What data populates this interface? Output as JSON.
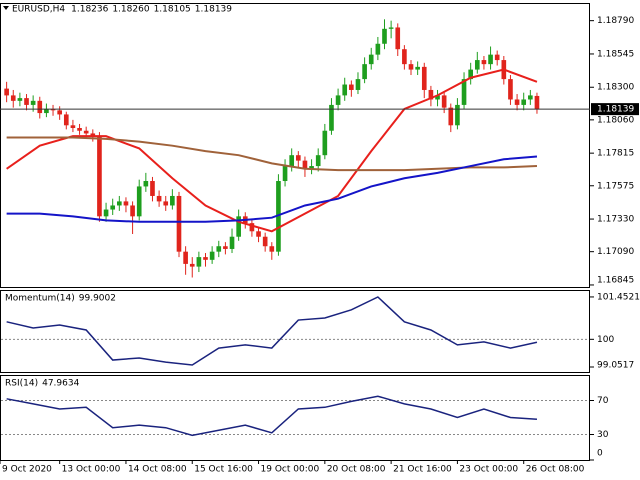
{
  "chart_data": [
    {
      "type": "candlestick",
      "title": "EURUSD,H4",
      "last_bar_labels": {
        "open": "1.18236",
        "high": "1.18260",
        "low": "1.18105",
        "close": "1.18139"
      },
      "x": [
        0,
        1,
        2,
        3,
        4,
        5,
        6,
        7,
        8,
        9,
        10,
        11,
        12,
        13,
        14,
        15,
        16,
        17,
        18,
        19,
        20,
        21,
        22,
        23,
        24,
        25,
        26,
        27,
        28,
        29,
        30,
        31,
        32,
        33,
        34,
        35,
        36,
        37,
        38,
        39,
        40,
        41,
        42,
        43,
        44,
        45,
        46,
        47,
        48,
        49,
        50,
        51,
        52,
        53,
        54,
        55,
        56,
        57,
        58,
        59,
        60,
        61,
        62,
        63,
        64,
        65,
        66,
        67,
        68,
        69,
        70,
        71,
        72,
        73,
        74,
        75,
        76,
        77,
        78,
        79,
        80
      ],
      "open": [
        1.1829,
        1.1824,
        1.182,
        1.1822,
        1.1817,
        1.182,
        1.1811,
        1.1814,
        1.1813,
        1.181,
        1.1802,
        1.18,
        1.1798,
        1.1796,
        1.1794,
        1.1735,
        1.174,
        1.1743,
        1.1746,
        1.1743,
        1.1735,
        1.1757,
        1.1761,
        1.175,
        1.1746,
        1.1743,
        1.175,
        1.1709,
        1.17,
        1.1698,
        1.1705,
        1.1703,
        1.1709,
        1.1713,
        1.1711,
        1.172,
        1.1735,
        1.173,
        1.1724,
        1.172,
        1.1713,
        1.1709,
        1.1761,
        1.1772,
        1.178,
        1.1776,
        1.177,
        1.1772,
        1.178,
        1.1798,
        1.1817,
        1.1824,
        1.1832,
        1.1828,
        1.1836,
        1.1847,
        1.1854,
        1.1862,
        1.1873,
        1.1874,
        1.1858,
        1.1847,
        1.1843,
        1.1845,
        1.1828,
        1.1821,
        1.1824,
        1.1815,
        1.1802,
        1.1817,
        1.1836,
        1.1843,
        1.185,
        1.1847,
        1.1854,
        1.185,
        1.1836,
        1.1821,
        1.1817,
        1.1821,
        1.18236
      ],
      "high": [
        1.1834,
        1.1828,
        1.1826,
        1.1825,
        1.1824,
        1.1823,
        1.1818,
        1.1817,
        1.1816,
        1.1812,
        1.1806,
        1.1803,
        1.1801,
        1.1799,
        1.1797,
        1.1745,
        1.1748,
        1.175,
        1.1749,
        1.1746,
        1.1762,
        1.1767,
        1.1764,
        1.1754,
        1.175,
        1.1755,
        1.1753,
        1.1713,
        1.1705,
        1.1709,
        1.1708,
        1.1713,
        1.1717,
        1.1716,
        1.1726,
        1.174,
        1.1738,
        1.1733,
        1.1727,
        1.1723,
        1.1716,
        1.1766,
        1.1777,
        1.1785,
        1.1783,
        1.1779,
        1.1777,
        1.1785,
        1.1803,
        1.1822,
        1.1829,
        1.1837,
        1.1835,
        1.1841,
        1.1852,
        1.1859,
        1.1867,
        1.188,
        1.1879,
        1.1877,
        1.1861,
        1.185,
        1.1849,
        1.1848,
        1.1831,
        1.1828,
        1.1827,
        1.1818,
        1.1822,
        1.1841,
        1.1848,
        1.1856,
        1.1853,
        1.186,
        1.1857,
        1.1853,
        1.1839,
        1.1825,
        1.1826,
        1.1828,
        1.1826
      ],
      "low": [
        1.1819,
        1.1815,
        1.1816,
        1.1813,
        1.1812,
        1.1807,
        1.1808,
        1.1809,
        1.1806,
        1.1799,
        1.1797,
        1.1795,
        1.1792,
        1.179,
        1.1731,
        1.1731,
        1.1736,
        1.1739,
        1.1738,
        1.1722,
        1.1732,
        1.1753,
        1.1746,
        1.1742,
        1.1739,
        1.174,
        1.1705,
        1.1692,
        1.169,
        1.1694,
        1.1698,
        1.17,
        1.1705,
        1.1707,
        1.1708,
        1.1717,
        1.1726,
        1.172,
        1.1716,
        1.1709,
        1.1703,
        1.1706,
        1.1757,
        1.1768,
        1.1771,
        1.1764,
        1.1766,
        1.1768,
        1.1777,
        1.1795,
        1.1813,
        1.182,
        1.1823,
        1.1825,
        1.1833,
        1.1843,
        1.185,
        1.1858,
        1.1866,
        1.1853,
        1.1843,
        1.1839,
        1.1839,
        1.1822,
        1.1816,
        1.1816,
        1.1811,
        1.1797,
        1.1799,
        1.1814,
        1.1832,
        1.184,
        1.1843,
        1.1843,
        1.1846,
        1.1832,
        1.1817,
        1.1813,
        1.1813,
        1.1817,
        1.18105
      ],
      "close": [
        1.1824,
        1.182,
        1.1822,
        1.1817,
        1.182,
        1.1811,
        1.1814,
        1.1813,
        1.181,
        1.1802,
        1.18,
        1.1798,
        1.1796,
        1.1794,
        1.1735,
        1.174,
        1.1743,
        1.1746,
        1.1743,
        1.1735,
        1.1757,
        1.1761,
        1.175,
        1.1746,
        1.1743,
        1.175,
        1.1709,
        1.17,
        1.1698,
        1.1705,
        1.1703,
        1.1709,
        1.1713,
        1.1711,
        1.172,
        1.1735,
        1.173,
        1.1724,
        1.172,
        1.1713,
        1.1709,
        1.1761,
        1.1772,
        1.178,
        1.1776,
        1.177,
        1.1772,
        1.178,
        1.1798,
        1.1817,
        1.1824,
        1.1832,
        1.1828,
        1.1836,
        1.1847,
        1.1854,
        1.1862,
        1.1873,
        1.1874,
        1.1858,
        1.1847,
        1.1843,
        1.1845,
        1.1828,
        1.1821,
        1.1824,
        1.1815,
        1.1802,
        1.1817,
        1.1836,
        1.1843,
        1.185,
        1.1847,
        1.1854,
        1.185,
        1.1836,
        1.1821,
        1.1817,
        1.1821,
        1.1824,
        1.18139
      ],
      "up_color": "#1e9e1e",
      "down_color": "#e0241c",
      "line_x": [
        0,
        5,
        10,
        15,
        20,
        25,
        30,
        35,
        40,
        45,
        50,
        55,
        60,
        65,
        70,
        75,
        80
      ],
      "lines": [
        {
          "color": "#e8201c",
          "values": [
            1.177,
            1.1787,
            1.1794,
            1.1794,
            1.1785,
            1.1763,
            1.1743,
            1.1731,
            1.1724,
            1.1737,
            1.175,
            1.1783,
            1.1814,
            1.1824,
            1.1837,
            1.1843,
            1.1834
          ]
        },
        {
          "color": "#a0623a",
          "values": [
            1.1793,
            1.1793,
            1.1793,
            1.1792,
            1.179,
            1.1787,
            1.1783,
            1.178,
            1.1774,
            1.177,
            1.1769,
            1.1769,
            1.1769,
            1.177,
            1.1771,
            1.1771,
            1.1772
          ]
        },
        {
          "color": "#1414c8",
          "values": [
            1.1737,
            1.1737,
            1.1735,
            1.1732,
            1.1731,
            1.1731,
            1.1731,
            1.1732,
            1.1734,
            1.1743,
            1.1748,
            1.1757,
            1.1763,
            1.1767,
            1.1772,
            1.1777,
            1.1779
          ]
        }
      ],
      "xlim": [
        -1,
        88
      ],
      "xticks": [
        {
          "value": -1,
          "label": "9 Oct 2020"
        },
        {
          "value": 8,
          "label": "13 Oct 00:00"
        },
        {
          "value": 18,
          "label": "14 Oct 08:00"
        },
        {
          "value": 28,
          "label": "15 Oct 16:00"
        },
        {
          "value": 38,
          "label": "19 Oct 00:00"
        },
        {
          "value": 48,
          "label": "20 Oct 08:00"
        },
        {
          "value": 58,
          "label": "21 Oct 16:00"
        },
        {
          "value": 68,
          "label": "23 Oct 00:00"
        },
        {
          "value": 78,
          "label": "26 Oct 08:00"
        }
      ],
      "ylim": [
        1.1683,
        1.1892
      ],
      "yticks": [
        {
          "value": 1.1879,
          "label": "1.18790"
        },
        1.18545,
        {
          "value": 1.183,
          "label": "1.18300"
        },
        {
          "value": 1.1806,
          "label": "1.18060"
        },
        1.17815,
        1.17575,
        {
          "value": 1.1733,
          "label": "1.17330"
        },
        {
          "value": 1.1709,
          "label": "1.17090"
        },
        1.16845
      ]
    },
    {
      "type": "line",
      "title": "Momentum(14)",
      "x": [
        0,
        4,
        8,
        12,
        16,
        20,
        24,
        28,
        32,
        36,
        40,
        44,
        48,
        52,
        56,
        60,
        64,
        68,
        72,
        76,
        80
      ],
      "values": [
        100.6,
        100.39,
        100.49,
        100.32,
        99.29,
        99.36,
        99.22,
        99.12,
        99.7,
        99.81,
        99.7,
        100.66,
        100.73,
        101.01,
        101.45,
        100.6,
        100.32,
        99.81,
        99.91,
        99.7,
        99.9002
      ],
      "color": "#1a237e",
      "ylim": [
        98.88,
        101.69
      ],
      "yticks": [
        101.4521,
        100,
        99.0517
      ],
      "levels": [
        100
      ]
    },
    {
      "type": "line",
      "title": "RSI(14)",
      "x": [
        0,
        4,
        8,
        12,
        16,
        20,
        24,
        28,
        32,
        36,
        40,
        44,
        48,
        52,
        56,
        60,
        64,
        68,
        72,
        76,
        80
      ],
      "values": [
        72,
        66,
        60,
        62,
        38,
        41,
        38,
        29,
        35,
        41,
        32,
        60,
        62,
        69,
        75,
        66,
        60,
        50,
        60,
        50,
        47.9634
      ],
      "color": "#1a237e",
      "ylim": [
        0,
        100
      ],
      "yticks": [
        70,
        30,
        0
      ],
      "levels": [
        70,
        30
      ]
    }
  ]
}
